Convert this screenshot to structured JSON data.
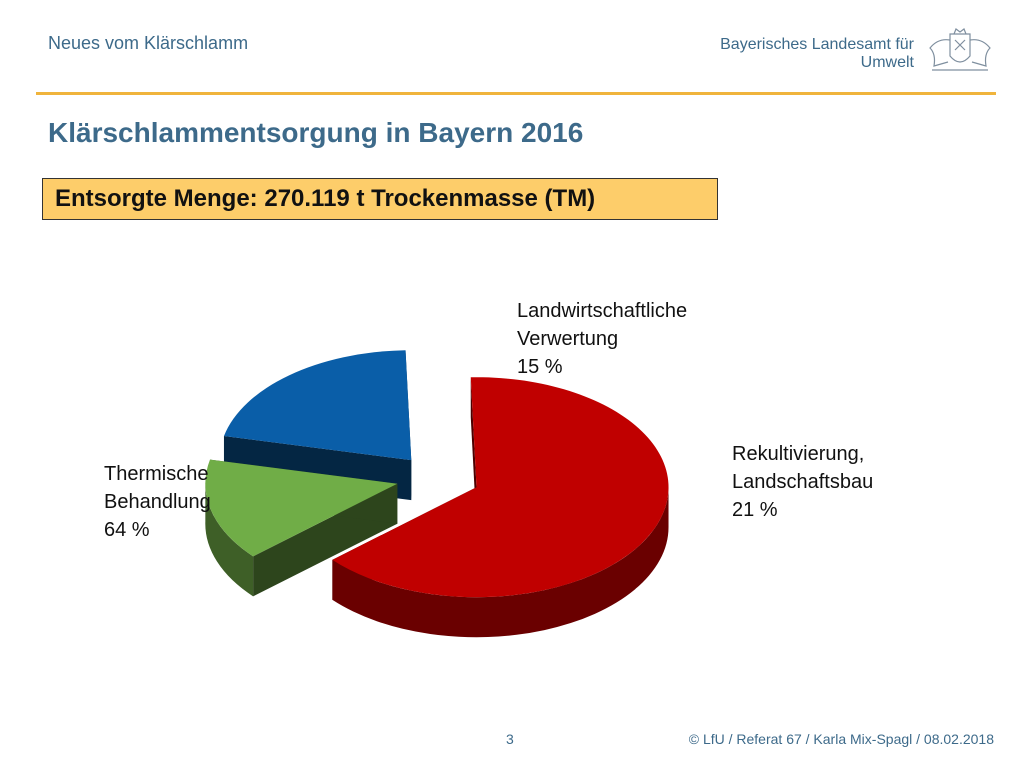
{
  "header": {
    "section": "Neues vom Klärschlamm",
    "agency_line1": "Bayerisches Landesamt für",
    "agency_line2": "Umwelt"
  },
  "slide": {
    "title": "Klärschlammentsorgung in Bayern 2016",
    "callout": "Entsorgte Menge: 270.119 t  Trockenmasse (TM)"
  },
  "chart_data": {
    "type": "pie",
    "style": "3d-exploded",
    "slices": [
      {
        "label_lines": [
          "Thermische",
          "Behandlung",
          "64 %"
        ],
        "value": 64,
        "color": "#c00000"
      },
      {
        "label_lines": [
          "Landwirtschaftliche",
          "Verwertung",
          "15 %"
        ],
        "value": 15,
        "color": "#70ad47"
      },
      {
        "label_lines": [
          "Rekultivierung,",
          "Landschaftsbau",
          "21 %"
        ],
        "value": 21,
        "color": "#0a5ea8"
      }
    ]
  },
  "footer": {
    "page": "3",
    "credit": "© LfU / Referat 67 / Karla Mix-Spagl / 08.02.2018"
  }
}
